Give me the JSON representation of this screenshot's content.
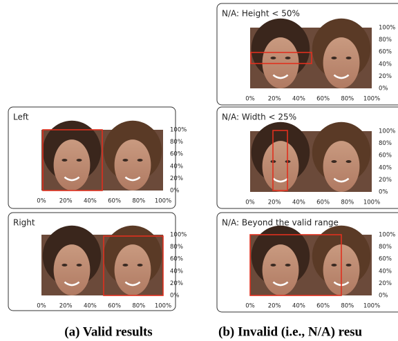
{
  "axis": {
    "x_labels": [
      "0%",
      "20%",
      "40%",
      "60%",
      "80%",
      "100%"
    ],
    "y_labels": [
      "100%",
      "80%",
      "60%",
      "40%",
      "20%",
      "0%"
    ]
  },
  "panels": [
    {
      "title": "Left"
    },
    {
      "title": "Right"
    },
    {
      "title": "N/A: Height < 50%"
    },
    {
      "title": "N/A: Width < 25%"
    },
    {
      "title": "N/A: Beyond the valid range"
    }
  ],
  "captions": [
    "(a) Valid results",
    "(b) Invalid (i.e., N/A) resu"
  ]
}
